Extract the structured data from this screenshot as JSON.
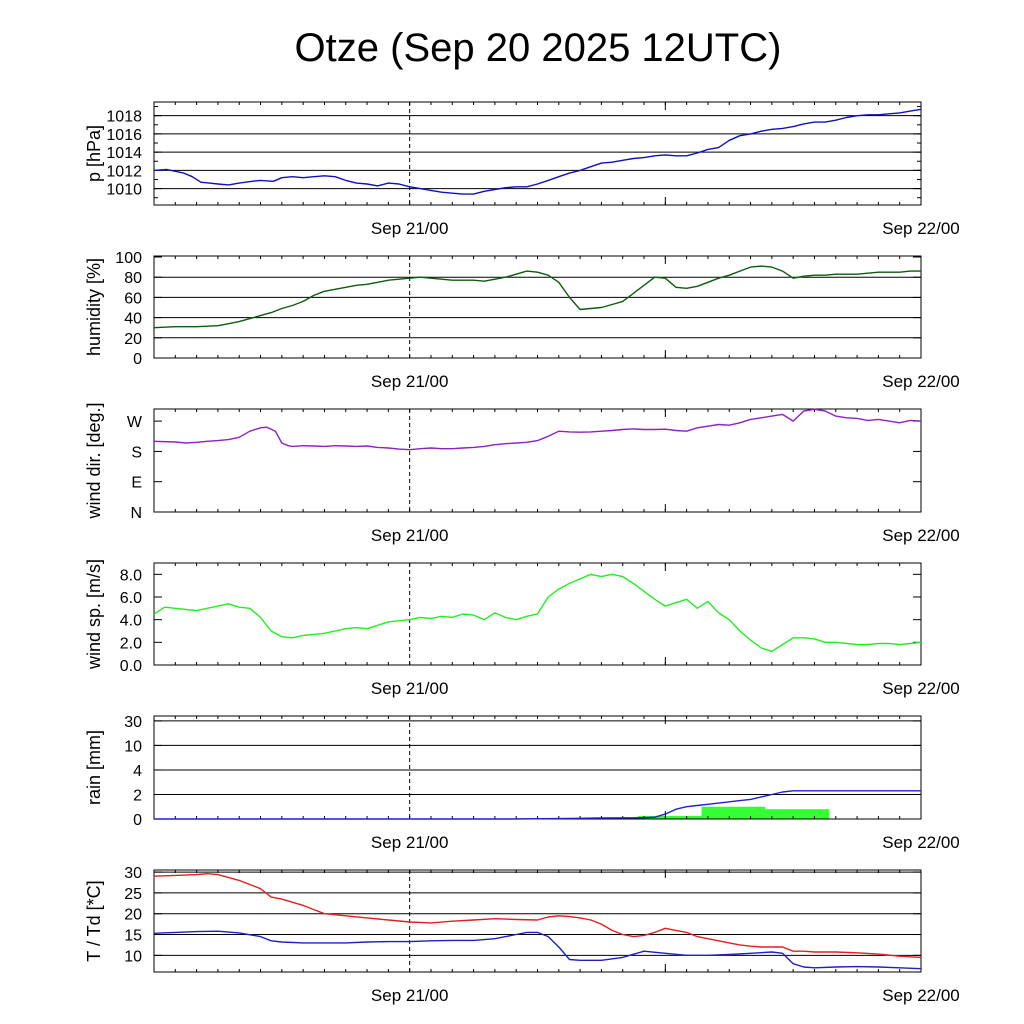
{
  "title": "Otze (Sep 20 2025 12UTC)",
  "chart_data": [
    {
      "type": "line",
      "name": "pressure",
      "ylabel": "p [hPa]",
      "ylim": [
        1008.2,
        1019.5
      ],
      "yticks": [
        1010,
        1012,
        1014,
        1016,
        1018
      ],
      "grid": [
        1010,
        1012,
        1014,
        1016,
        1018
      ],
      "x_range_hours": [
        0,
        36
      ],
      "xtick_labels": [
        {
          "hour": 12,
          "label": "Sep 21/00"
        },
        {
          "hour": 36,
          "label": "Sep 22/00"
        }
      ],
      "series": [
        {
          "name": "p",
          "color": "#1010c0",
          "x": [
            0,
            0.6,
            1,
            1.4,
            1.8,
            2.2,
            2.6,
            3,
            3.5,
            4,
            4.6,
            5,
            5.6,
            6,
            6.5,
            7,
            7.5,
            8,
            8.5,
            9,
            9.5,
            10,
            10.5,
            11,
            11.5,
            12,
            12.5,
            13,
            13.5,
            14,
            14.5,
            15,
            15.5,
            16,
            16.5,
            17,
            17.5,
            18,
            18.5,
            19,
            19.5,
            20,
            20.5,
            21,
            21.5,
            22,
            22.5,
            23,
            23.5,
            24,
            24.5,
            25,
            25.5,
            26,
            26.5,
            27,
            27.5,
            28,
            28.5,
            29,
            29.5,
            30,
            30.5,
            31,
            31.5,
            32,
            32.5,
            33,
            33.5,
            34,
            34.5,
            35,
            35.5,
            36
          ],
          "values": [
            1012,
            1012.1,
            1011.9,
            1011.7,
            1011.3,
            1010.7,
            1010.6,
            1010.5,
            1010.4,
            1010.6,
            1010.8,
            1010.9,
            1010.8,
            1011.2,
            1011.3,
            1011.2,
            1011.3,
            1011.4,
            1011.3,
            1010.9,
            1010.6,
            1010.5,
            1010.3,
            1010.6,
            1010.5,
            1010.2,
            1010,
            1009.8,
            1009.6,
            1009.5,
            1009.4,
            1009.4,
            1009.7,
            1009.9,
            1010.1,
            1010.2,
            1010.2,
            1010.5,
            1010.9,
            1011.3,
            1011.7,
            1012,
            1012.4,
            1012.8,
            1012.9,
            1013.1,
            1013.3,
            1013.4,
            1013.6,
            1013.7,
            1013.6,
            1013.6,
            1013.9,
            1014.3,
            1014.5,
            1015.3,
            1015.8,
            1016,
            1016.3,
            1016.5,
            1016.6,
            1016.8,
            1017.1,
            1017.3,
            1017.3,
            1017.5,
            1017.8,
            1018,
            1018.1,
            1018.1,
            1018.2,
            1018.3,
            1018.5,
            1018.7
          ]
        }
      ]
    },
    {
      "type": "line",
      "name": "humidity",
      "ylabel": "humidity [%]",
      "ylim": [
        0,
        101
      ],
      "yticks": [
        0,
        20,
        40,
        60,
        80,
        100
      ],
      "grid": [
        20,
        40,
        60,
        80
      ],
      "x_range_hours": [
        0,
        36
      ],
      "xtick_labels": [
        {
          "hour": 12,
          "label": "Sep 21/00"
        },
        {
          "hour": 36,
          "label": "Sep 22/00"
        }
      ],
      "series": [
        {
          "name": "humidity",
          "color": "#0d5c0d",
          "x": [
            0,
            1,
            2,
            3,
            3.5,
            4,
            4.5,
            5,
            5.5,
            6,
            6.5,
            7,
            7.5,
            8,
            8.5,
            9,
            9.5,
            10,
            10.5,
            11,
            11.5,
            12,
            12.5,
            13,
            13.5,
            14,
            14.5,
            15,
            15.5,
            16,
            16.5,
            17,
            17.5,
            18,
            18.5,
            19,
            19.5,
            20,
            20.5,
            21,
            21.5,
            22,
            22.5,
            23,
            23.5,
            24,
            24.5,
            25,
            25.5,
            26,
            26.5,
            27,
            27.5,
            28,
            28.5,
            29,
            29.5,
            30,
            30.5,
            31,
            31.5,
            32,
            32.5,
            33,
            33.5,
            34,
            34.5,
            35,
            35.5,
            36
          ],
          "values": [
            30,
            31,
            31,
            32,
            34,
            36,
            39,
            42,
            45,
            49,
            52,
            56,
            62,
            66,
            68,
            70,
            72,
            73,
            75,
            77,
            78,
            79,
            80,
            79,
            78,
            77,
            77,
            77,
            76,
            78,
            80,
            83,
            86,
            85,
            82,
            75,
            60,
            48,
            49,
            50,
            53,
            56,
            64,
            72,
            80,
            79,
            70,
            69,
            71,
            75,
            79,
            82,
            86,
            90,
            91,
            90,
            86,
            79,
            81,
            82,
            82,
            83,
            83,
            83,
            84,
            85,
            85,
            85,
            86,
            86
          ]
        }
      ]
    },
    {
      "type": "line",
      "name": "wind_direction",
      "ylabel": "wind dir. [deg.]",
      "ylim": [
        0,
        306
      ],
      "yticks": [
        0,
        90,
        180,
        270
      ],
      "ytick_labels": [
        "N",
        "E",
        "S",
        "W"
      ],
      "x_range_hours": [
        0,
        36
      ],
      "xtick_labels": [
        {
          "hour": 12,
          "label": "Sep 21/00"
        },
        {
          "hour": 36,
          "label": "Sep 22/00"
        }
      ],
      "series": [
        {
          "name": "wind dir",
          "color": "#9020c0",
          "x": [
            0,
            1,
            1.5,
            2,
            2.5,
            3,
            3.5,
            4,
            4.5,
            5,
            5.3,
            5.7,
            6,
            6.3,
            6.5,
            7,
            7.5,
            8,
            8.5,
            9,
            9.5,
            10,
            10.5,
            11,
            11.5,
            12,
            12.5,
            13,
            13.5,
            14,
            14.5,
            15,
            15.5,
            16,
            16.5,
            17,
            17.5,
            18,
            18.5,
            19,
            19.5,
            20,
            20.5,
            21,
            21.5,
            22,
            22.5,
            23,
            23.5,
            24,
            24.5,
            25,
            25.5,
            26,
            26.5,
            27,
            27.5,
            28,
            28.5,
            29,
            29.5,
            30,
            30.5,
            31,
            31.5,
            32,
            32.5,
            33,
            33.5,
            34,
            34.5,
            35,
            35.5,
            36
          ],
          "values": [
            210,
            208,
            205,
            207,
            210,
            212,
            215,
            222,
            240,
            250,
            252,
            240,
            205,
            197,
            195,
            197,
            196,
            195,
            197,
            196,
            195,
            196,
            192,
            190,
            187,
            185,
            188,
            190,
            188,
            188,
            190,
            192,
            195,
            200,
            203,
            205,
            207,
            212,
            225,
            240,
            238,
            237,
            238,
            240,
            242,
            245,
            247,
            245,
            245,
            246,
            242,
            240,
            250,
            255,
            260,
            258,
            265,
            275,
            280,
            285,
            290,
            270,
            300,
            305,
            300,
            285,
            280,
            278,
            272,
            275,
            270,
            265,
            272,
            270
          ]
        }
      ]
    },
    {
      "type": "line",
      "name": "wind_speed",
      "ylabel": "wind sp. [m/s]",
      "ylim": [
        0,
        9
      ],
      "yticks": [
        0,
        2,
        4,
        6,
        8
      ],
      "ytick_labels": [
        "0.0",
        "2.0",
        "4.0",
        "6.0",
        "8.0"
      ],
      "x_range_hours": [
        0,
        36
      ],
      "xtick_labels": [
        {
          "hour": 12,
          "label": "Sep 21/00"
        },
        {
          "hour": 36,
          "label": "Sep 22/00"
        }
      ],
      "series": [
        {
          "name": "wind speed",
          "color": "#22ee22",
          "x": [
            0,
            0.5,
            1,
            1.5,
            2,
            2.5,
            3,
            3.5,
            4,
            4.5,
            5,
            5.5,
            6,
            6.5,
            7,
            7.5,
            8,
            8.5,
            9,
            9.5,
            10,
            10.5,
            11,
            11.5,
            12,
            12.5,
            13,
            13.5,
            14,
            14.5,
            15,
            15.5,
            16,
            16.5,
            17,
            17.5,
            18,
            18.5,
            19,
            19.5,
            20,
            20.5,
            21,
            21.5,
            22,
            22.5,
            23,
            23.5,
            24,
            24.5,
            25,
            25.5,
            26,
            26.5,
            27,
            27.5,
            28,
            28.5,
            29,
            29.5,
            30,
            30.5,
            31,
            31.5,
            32,
            32.5,
            33,
            33.5,
            34,
            34.5,
            35,
            35.5,
            36
          ],
          "values": [
            4.5,
            5.1,
            5.0,
            4.9,
            4.8,
            5.0,
            5.2,
            5.4,
            5.1,
            5.0,
            4.2,
            3.0,
            2.5,
            2.4,
            2.6,
            2.7,
            2.8,
            3.0,
            3.2,
            3.3,
            3.2,
            3.5,
            3.8,
            3.9,
            4.0,
            4.2,
            4.1,
            4.3,
            4.2,
            4.5,
            4.4,
            4.0,
            4.6,
            4.2,
            4.0,
            4.3,
            4.5,
            6.0,
            6.7,
            7.2,
            7.6,
            8.0,
            7.8,
            8.0,
            7.8,
            7.2,
            6.5,
            5.8,
            5.2,
            5.5,
            5.8,
            5.0,
            5.6,
            4.6,
            4.0,
            3.0,
            2.2,
            1.5,
            1.2,
            1.8,
            2.4,
            2.4,
            2.3,
            2.0,
            2.0,
            1.9,
            1.8,
            1.8,
            1.9,
            1.9,
            1.8,
            1.9,
            2.0
          ]
        }
      ]
    },
    {
      "type": "bar+line",
      "name": "rain",
      "ylabel": "rain [mm]",
      "scale": "log-like",
      "ylim": [
        0,
        40
      ],
      "yticks": [
        0,
        2,
        4,
        10,
        30
      ],
      "grid": [
        2,
        4,
        10,
        30
      ],
      "x_range_hours": [
        0,
        36
      ],
      "xtick_labels": [
        {
          "hour": 12,
          "label": "Sep 21/00"
        },
        {
          "hour": 36,
          "label": "Sep 22/00"
        }
      ],
      "bars": {
        "name": "hourly rain",
        "color": "#33ff33",
        "segments": [
          {
            "x0": 16.7,
            "x1": 19.7,
            "value": 0.05
          },
          {
            "x0": 22.7,
            "x1": 25.7,
            "value": 0.25
          },
          {
            "x0": 25.7,
            "x1": 28.7,
            "value": 1.0
          },
          {
            "x0": 28.7,
            "x1": 31.7,
            "value": 0.8
          }
        ]
      },
      "series": [
        {
          "name": "accumulated rain",
          "color": "#2020d0",
          "x": [
            0,
            16.7,
            19.5,
            21,
            22.8,
            23.5,
            24,
            24.5,
            25,
            25.5,
            26,
            26.5,
            27,
            27.5,
            28,
            28.5,
            29,
            29.5,
            30,
            30.5,
            31,
            31.5,
            32,
            33,
            36
          ],
          "values": [
            0,
            0,
            0.05,
            0.08,
            0.1,
            0.15,
            0.4,
            0.8,
            1.0,
            1.1,
            1.2,
            1.3,
            1.4,
            1.5,
            1.6,
            1.8,
            2.0,
            2.2,
            2.3,
            2.3,
            2.3,
            2.3,
            2.3,
            2.3,
            2.3
          ]
        }
      ]
    },
    {
      "type": "line",
      "name": "temperature",
      "ylabel": "T / Td [*C]",
      "ylim": [
        6,
        30.5
      ],
      "yticks": [
        10,
        15,
        20,
        25,
        30
      ],
      "grid": [
        10,
        15,
        20,
        25,
        30
      ],
      "x_range_hours": [
        0,
        36
      ],
      "xtick_labels": [
        {
          "hour": 12,
          "label": "Sep 21/00"
        },
        {
          "hour": 36,
          "label": "Sep 22/00"
        }
      ],
      "series": [
        {
          "name": "T",
          "color": "#e02020",
          "x": [
            0,
            1,
            2,
            2.5,
            3,
            4,
            5,
            5.5,
            6,
            7,
            7.5,
            8,
            9,
            10,
            11,
            12,
            13,
            14,
            15,
            16,
            17,
            18,
            18.5,
            19,
            19.5,
            20,
            20.5,
            21,
            21.5,
            22,
            22.5,
            23,
            23.5,
            24,
            24.5,
            25,
            25.5,
            26,
            26.5,
            27,
            27.5,
            28,
            28.5,
            29,
            29.5,
            30,
            30.5,
            31,
            32,
            33,
            34,
            35,
            36
          ],
          "values": [
            29,
            29.2,
            29.4,
            29.6,
            29.4,
            28,
            26,
            24,
            23.5,
            22,
            21,
            20,
            19.5,
            19,
            18.5,
            18,
            17.8,
            18.2,
            18.5,
            18.8,
            18.6,
            18.5,
            19.2,
            19.5,
            19.3,
            19,
            18.5,
            17.5,
            16,
            15,
            14.5,
            14.8,
            15.5,
            16.5,
            16,
            15.5,
            14.5,
            14,
            13.5,
            13,
            12.5,
            12.2,
            12,
            12,
            12,
            11,
            11,
            10.8,
            10.8,
            10.6,
            10.3,
            9.8,
            9.5
          ]
        },
        {
          "name": "Td",
          "color": "#2020c0",
          "x": [
            0,
            1,
            2,
            3,
            4,
            5,
            5.5,
            6,
            7,
            8,
            9,
            10,
            11,
            12,
            13,
            14,
            15,
            16,
            17,
            17.5,
            18,
            18.5,
            19,
            19.5,
            20,
            21,
            22,
            23,
            24,
            25,
            26,
            27,
            28,
            29,
            29.5,
            30,
            30.5,
            31,
            32,
            33,
            34,
            35,
            36
          ],
          "values": [
            15.3,
            15.5,
            15.7,
            15.8,
            15.4,
            14.5,
            13.5,
            13.2,
            13,
            13,
            13,
            13.2,
            13.3,
            13.3,
            13.5,
            13.6,
            13.6,
            14,
            15,
            15.5,
            15.5,
            14.5,
            12,
            9,
            8.8,
            8.8,
            9.5,
            11,
            10.5,
            10,
            10,
            10.2,
            10.5,
            10.8,
            10.5,
            8,
            7.2,
            7,
            7.2,
            7.3,
            7.2,
            7,
            6.8
          ]
        }
      ]
    }
  ]
}
